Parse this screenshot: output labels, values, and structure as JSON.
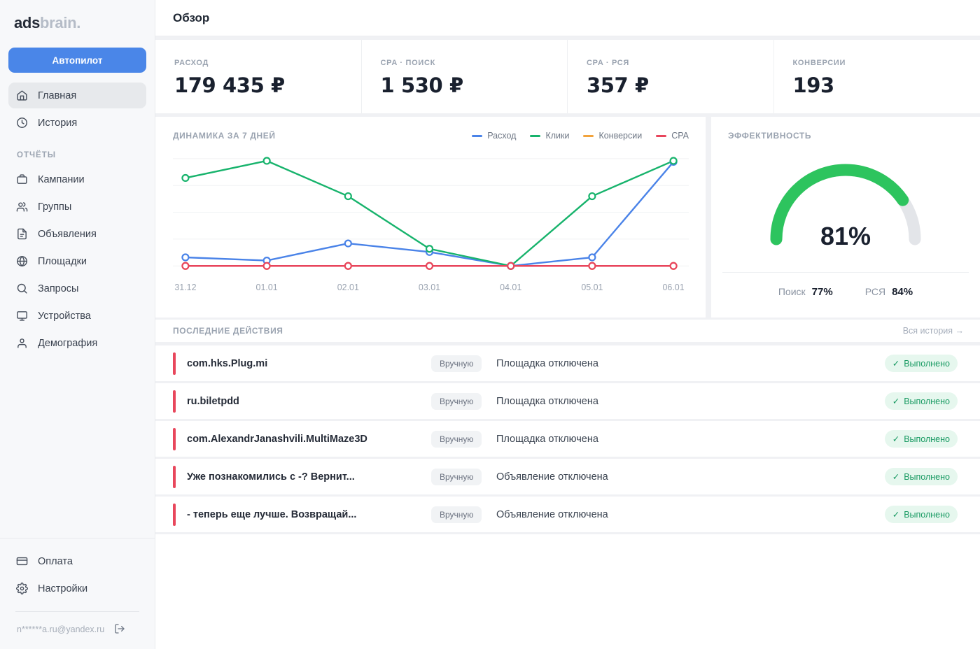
{
  "app": {
    "logo_primary": "ads",
    "logo_secondary": "brain."
  },
  "sidebar": {
    "autopilot_button": "Автопилот",
    "main_items": [
      {
        "label": "Главная",
        "icon": "home",
        "active": true
      },
      {
        "label": "История",
        "icon": "clock",
        "active": false
      }
    ],
    "section_label": "ОТЧЁТЫ",
    "report_items": [
      {
        "label": "Кампании",
        "icon": "briefcase"
      },
      {
        "label": "Группы",
        "icon": "users"
      },
      {
        "label": "Объявления",
        "icon": "file"
      },
      {
        "label": "Площадки",
        "icon": "globe"
      },
      {
        "label": "Запросы",
        "icon": "search"
      },
      {
        "label": "Устройства",
        "icon": "monitor"
      },
      {
        "label": "Демография",
        "icon": "person"
      }
    ],
    "footer_items": [
      {
        "label": "Оплата",
        "icon": "credit-card"
      },
      {
        "label": "Настройки",
        "icon": "gear"
      }
    ],
    "account_email": "n******a.ru@yandex.ru",
    "logout_icon": "log-out"
  },
  "header": {
    "title": "Обзор"
  },
  "stats": [
    {
      "label": "РАСХОД",
      "value": "179 435 ₽"
    },
    {
      "label": "CPA · ПОИСК",
      "value": "1 530 ₽"
    },
    {
      "label": "CPA · РСЯ",
      "value": "357 ₽"
    },
    {
      "label": "КОНВЕРСИИ",
      "value": "193"
    }
  ],
  "chart_data": {
    "type": "line",
    "title": "ДИНАМИКА ЗА 7 ДНЕЙ",
    "x": [
      "31.12",
      "01.01",
      "02.01",
      "03.01",
      "04.01",
      "05.01",
      "06.01"
    ],
    "series": [
      {
        "name": "Конверсии",
        "color": "#f2a33c",
        "values": [
          0,
          0,
          0,
          0,
          0,
          0,
          0
        ]
      },
      {
        "name": "Расход",
        "color": "#4a83e8",
        "values": [
          8,
          5,
          21,
          13,
          0,
          8,
          97
        ]
      },
      {
        "name": "Клики",
        "color": "#17b36c",
        "values": [
          82,
          98,
          65,
          16,
          0,
          65,
          98
        ]
      },
      {
        "name": "CPA",
        "color": "#e8455c",
        "values": [
          0,
          0,
          0,
          0,
          0,
          0,
          0
        ]
      }
    ],
    "legend_order": [
      "Расход",
      "Клики",
      "Конверсии",
      "CPA"
    ],
    "ylim": [
      0,
      100
    ],
    "grid": true,
    "legend_position": "top-right"
  },
  "effectiveness": {
    "title": "ЭФФЕКТИВНОСТЬ",
    "value_pct": 81,
    "value_label": "81%",
    "gauge_color": "#2dc45e",
    "gauge_track": "#e3e5e9",
    "breakdown": [
      {
        "label": "Поиск",
        "value": "77%"
      },
      {
        "label": "РСЯ",
        "value": "84%"
      }
    ]
  },
  "actions": {
    "title": "ПОСЛЕДНИЕ ДЕЙСТВИЯ",
    "history_link": "Вся история →",
    "check_icon": "✓",
    "rows": [
      {
        "name": "com.hks.Plug.mi",
        "mode": "Вручную",
        "action": "Площадка отключена",
        "status": "Выполнено"
      },
      {
        "name": "ru.biletpdd",
        "mode": "Вручную",
        "action": "Площадка отключена",
        "status": "Выполнено"
      },
      {
        "name": "com.AlexandrJanashvili.MultiMaze3D",
        "mode": "Вручную",
        "action": "Площадка отключена",
        "status": "Выполнено"
      },
      {
        "name": "Уже познакомились с -? Вернит...",
        "mode": "Вручную",
        "action": "Объявление отключена",
        "status": "Выполнено"
      },
      {
        "name": "- теперь еще лучше. Возвращай...",
        "mode": "Вручную",
        "action": "Объявление отключена",
        "status": "Выполнено"
      }
    ]
  }
}
